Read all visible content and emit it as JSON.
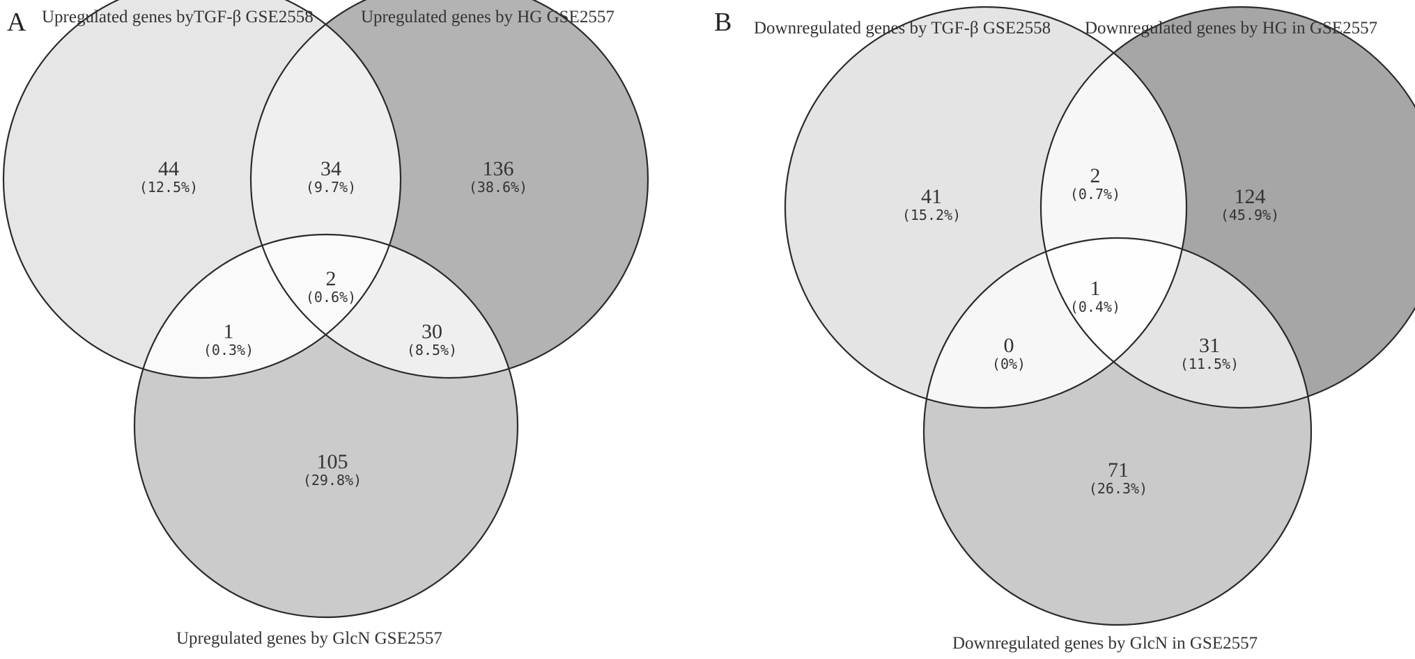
{
  "panels": [
    {
      "letter": "A",
      "labels": {
        "set1": "Upregulated genes byTGF-β GSE2558",
        "set2": "Upregulated genes by HG GSE2557",
        "set3": "Upregulated genes by GlcN GSE2557"
      },
      "regions": {
        "only1": {
          "count": "44",
          "pct": "(12.5%)"
        },
        "only2": {
          "count": "136",
          "pct": "(38.6%)"
        },
        "only3": {
          "count": "105",
          "pct": "(29.8%)"
        },
        "s12": {
          "count": "34",
          "pct": "(9.7%)"
        },
        "s13": {
          "count": "1",
          "pct": "(0.3%)"
        },
        "s23": {
          "count": "30",
          "pct": "(8.5%)"
        },
        "s123": {
          "count": "2",
          "pct": "(0.6%)"
        }
      }
    },
    {
      "letter": "B",
      "labels": {
        "set1": "Downregulated genes by TGF-β GSE2558",
        "set2": "Downregulated genes by HG in GSE2557",
        "set3": "Downregulated genes by GlcN in GSE2557"
      },
      "regions": {
        "only1": {
          "count": "41",
          "pct": "(15.2%)"
        },
        "only2": {
          "count": "124",
          "pct": "(45.9%)"
        },
        "only3": {
          "count": "71",
          "pct": "(26.3%)"
        },
        "s12": {
          "count": "2",
          "pct": "(0.7%)"
        },
        "s13": {
          "count": "0",
          "pct": "(0%)"
        },
        "s23": {
          "count": "31",
          "pct": "(11.5%)"
        },
        "s123": {
          "count": "1",
          "pct": "(0.4%)"
        }
      }
    }
  ],
  "colors": {
    "a_set1": "#e6e6e6",
    "a_set2": "#b3b3b3",
    "a_set3": "#cbcbcb",
    "a_pair": "#efefef",
    "a_center": "#fafafa",
    "b_set1": "#e4e4e4",
    "b_set2": "#a6a6a6",
    "b_set3": "#cacaca",
    "b_pair": "#f7f7f7",
    "b_center": "#fefefe"
  }
}
